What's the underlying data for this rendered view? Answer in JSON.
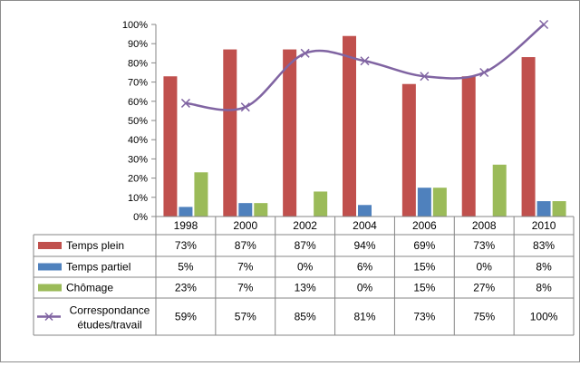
{
  "chart_data": {
    "type": "bar",
    "categories": [
      "1998",
      "2000",
      "2002",
      "2004",
      "2006",
      "2008",
      "2010"
    ],
    "ylim": [
      0,
      100
    ],
    "y_ticks": [
      "0%",
      "10%",
      "20%",
      "30%",
      "40%",
      "50%",
      "60%",
      "70%",
      "80%",
      "90%",
      "100%"
    ],
    "y_tick_values": [
      0,
      10,
      20,
      30,
      40,
      50,
      60,
      70,
      80,
      90,
      100
    ],
    "legend_placement": "data-table-below",
    "grid": false,
    "series": [
      {
        "name": "Temps plein",
        "type": "bar",
        "color": "#C0504D",
        "values": [
          73,
          87,
          87,
          94,
          69,
          73,
          83
        ],
        "labels": [
          "73%",
          "87%",
          "87%",
          "94%",
          "69%",
          "73%",
          "83%"
        ]
      },
      {
        "name": "Temps partiel",
        "type": "bar",
        "color": "#4F81BD",
        "values": [
          5,
          7,
          0,
          6,
          15,
          0,
          8
        ],
        "labels": [
          "5%",
          "7%",
          "0%",
          "6%",
          "15%",
          "0%",
          "8%"
        ]
      },
      {
        "name": "Chômage",
        "type": "bar",
        "color": "#9BBB59",
        "values": [
          23,
          7,
          13,
          0,
          15,
          27,
          8
        ],
        "labels": [
          "23%",
          "7%",
          "13%",
          "0%",
          "15%",
          "27%",
          "8%"
        ]
      },
      {
        "name": "Correspondance études/travail",
        "type": "line",
        "marker": "x",
        "color": "#8064A2",
        "name_lines": [
          "Correspondance",
          "études/travail"
        ],
        "values": [
          59,
          57,
          85,
          81,
          73,
          75,
          100
        ],
        "labels": [
          "59%",
          "57%",
          "85%",
          "81%",
          "73%",
          "75%",
          "100%"
        ]
      }
    ]
  }
}
